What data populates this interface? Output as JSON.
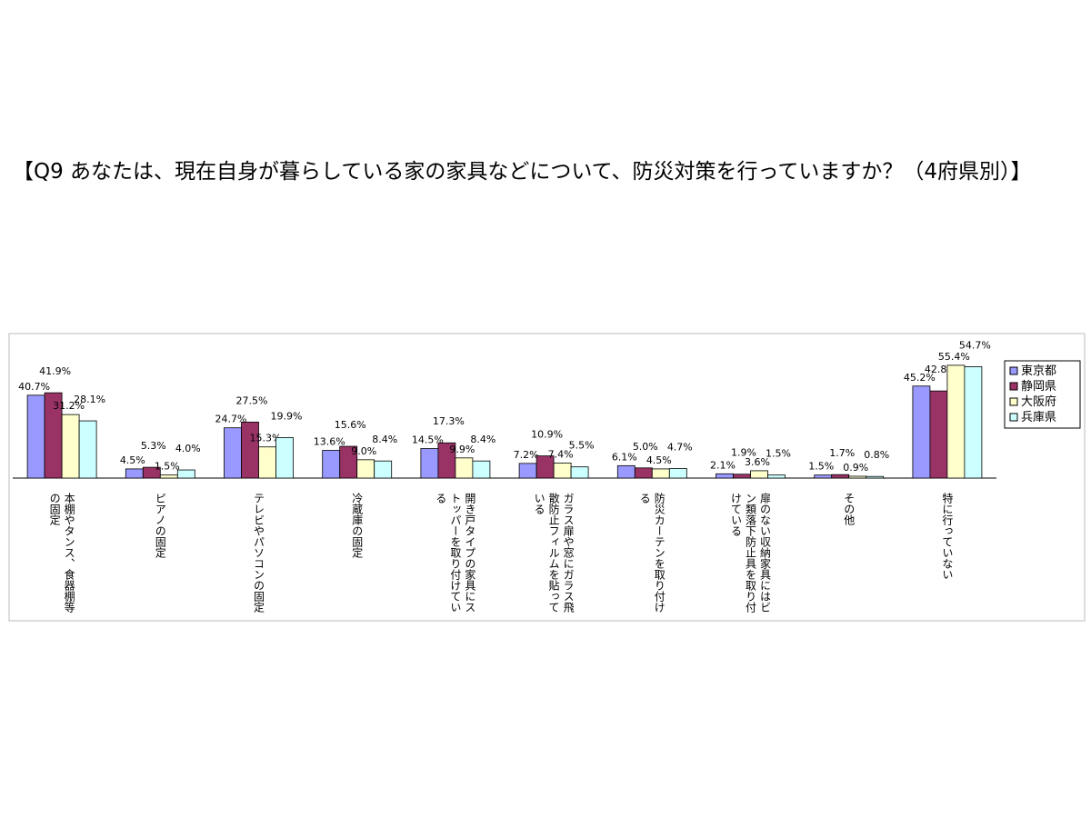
{
  "chart_data": {
    "type": "bar",
    "title": "【Q9 あなたは、現在自身が暮らしている家の家具などについて、防災対策を行っていますか？（4府県別）】",
    "categories": [
      "本棚やタンス、食器棚等の固定",
      "ピアノの固定",
      "テレビやパソコンの固定",
      "冷蔵庫の固定",
      "開き戸タイプの家具にストッパーを取り付けている",
      "ガラス扉や窓にガラス飛散防止フィルムを貼っている",
      "防災カーテンを取り付ける",
      "扉のない収納家具にはビン類落下防止具を取り付けている",
      "その他",
      "特に行っていない"
    ],
    "series": [
      {
        "name": "東京都",
        "color": "#9999ff",
        "values": [
          40.7,
          4.5,
          24.7,
          13.6,
          14.5,
          7.2,
          6.1,
          2.1,
          1.5,
          45.2
        ],
        "value_labels": [
          "40.7%",
          "4.5%",
          "24.7%",
          "13.6%",
          "14.5%",
          "7.2%",
          "6.1%",
          "2.1%",
          "1.5%",
          "45.2%"
        ]
      },
      {
        "name": "静岡県",
        "color": "#993366",
        "values": [
          41.9,
          5.3,
          27.5,
          15.6,
          17.3,
          10.9,
          5.0,
          1.9,
          1.7,
          42.8
        ],
        "value_labels": [
          "41.9%",
          "5.3%",
          "27.5%",
          "15.6%",
          "17.3%",
          "10.9%",
          "5.0%",
          "1.9%",
          "1.7%",
          "42.8%"
        ]
      },
      {
        "name": "大阪府",
        "color": "#ffffcc",
        "values": [
          31.2,
          1.5,
          15.3,
          9.0,
          9.9,
          7.4,
          4.5,
          3.6,
          0.9,
          55.4
        ],
        "value_labels": [
          "31.2%",
          "1.5%",
          "15.3%",
          "9.0%",
          "9.9%",
          "7.4%",
          "4.5%",
          "3.6%",
          "0.9%",
          "55.4%"
        ]
      },
      {
        "name": "兵庫県",
        "color": "#ccffff",
        "values": [
          28.1,
          4.0,
          19.9,
          8.4,
          8.4,
          5.5,
          4.7,
          1.5,
          0.8,
          54.7
        ],
        "value_labels": [
          "28.1%",
          "4.0%",
          "19.9%",
          "8.4%",
          "8.4%",
          "5.5%",
          "4.7%",
          "1.5%",
          "0.8%",
          "54.7%"
        ]
      }
    ]
  }
}
